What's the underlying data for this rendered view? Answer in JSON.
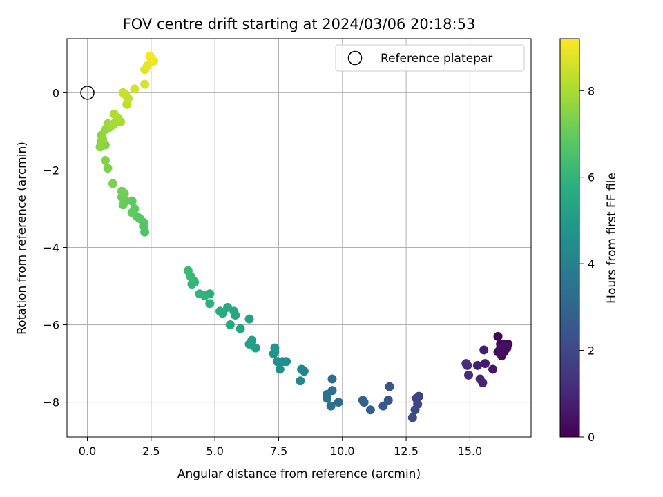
{
  "chart_data": {
    "type": "scatter",
    "title": "FOV centre drift starting at 2024/03/06 20:18:53",
    "xlabel": "Angular distance from reference (arcmin)",
    "ylabel": "Rotation from reference (arcmin)",
    "xlim": [
      -0.8,
      17.4
    ],
    "ylim": [
      -8.9,
      1.4
    ],
    "xticks": [
      0.0,
      2.5,
      5.0,
      7.5,
      10.0,
      12.5,
      15.0
    ],
    "xtick_labels": [
      "0.0",
      "2.5",
      "5.0",
      "7.5",
      "10.0",
      "12.5",
      "15.0"
    ],
    "yticks": [
      0,
      -2,
      -4,
      -6,
      -8
    ],
    "ytick_labels": [
      "0",
      "−2",
      "−4",
      "−6",
      "−8"
    ],
    "grid": true,
    "legend": {
      "position": "upper-right",
      "entries": [
        "Reference platepar"
      ]
    },
    "reference_point": {
      "x": 0.0,
      "y": 0.0
    },
    "colorbar": {
      "label": "Hours from first FF file",
      "colormap": "viridis",
      "range": [
        0,
        9.2
      ],
      "ticks": [
        0,
        2,
        4,
        6,
        8
      ],
      "tick_labels": [
        "0",
        "2",
        "4",
        "6",
        "8"
      ]
    },
    "points": [
      [
        16.1,
        -6.3,
        0.1
      ],
      [
        16.2,
        -6.5,
        0.12
      ],
      [
        16.3,
        -6.6,
        0.15
      ],
      [
        16.4,
        -6.5,
        0.18
      ],
      [
        16.5,
        -6.5,
        0.2
      ],
      [
        16.45,
        -6.6,
        0.22
      ],
      [
        16.35,
        -6.7,
        0.25
      ],
      [
        16.25,
        -6.8,
        0.28
      ],
      [
        16.1,
        -6.7,
        0.3
      ],
      [
        16.2,
        -6.6,
        0.35
      ],
      [
        16.4,
        -6.55,
        0.4
      ],
      [
        15.9,
        -7.15,
        0.55
      ],
      [
        15.6,
        -7.0,
        0.65
      ],
      [
        15.55,
        -6.65,
        0.7
      ],
      [
        15.3,
        -7.05,
        0.8
      ],
      [
        15.4,
        -7.4,
        0.85
      ],
      [
        15.5,
        -7.5,
        0.9
      ],
      [
        14.9,
        -7.05,
        1.1
      ],
      [
        14.95,
        -7.3,
        1.15
      ],
      [
        14.85,
        -7.0,
        1.2
      ],
      [
        13.0,
        -7.85,
        1.8
      ],
      [
        12.9,
        -7.9,
        1.85
      ],
      [
        12.95,
        -8.05,
        1.9
      ],
      [
        12.85,
        -8.2,
        2.0
      ],
      [
        12.75,
        -8.4,
        2.05
      ],
      [
        11.85,
        -7.6,
        2.4
      ],
      [
        11.8,
        -7.95,
        2.45
      ],
      [
        11.6,
        -8.1,
        2.5
      ],
      [
        11.1,
        -8.2,
        2.7
      ],
      [
        10.8,
        -7.95,
        2.8
      ],
      [
        10.85,
        -8.0,
        2.85
      ],
      [
        9.85,
        -8.0,
        3.2
      ],
      [
        9.6,
        -7.4,
        3.3
      ],
      [
        9.6,
        -7.7,
        3.35
      ],
      [
        9.55,
        -8.1,
        3.4
      ],
      [
        9.4,
        -7.8,
        3.45
      ],
      [
        9.4,
        -7.9,
        3.5
      ],
      [
        8.5,
        -7.2,
        4.1
      ],
      [
        8.4,
        -7.15,
        4.15
      ],
      [
        8.35,
        -7.45,
        4.2
      ],
      [
        7.8,
        -6.95,
        4.5
      ],
      [
        7.65,
        -6.95,
        4.55
      ],
      [
        7.55,
        -7.15,
        4.6
      ],
      [
        7.45,
        -6.95,
        4.65
      ],
      [
        7.35,
        -6.7,
        4.7
      ],
      [
        7.3,
        -6.75,
        4.75
      ],
      [
        7.35,
        -6.6,
        4.8
      ],
      [
        6.6,
        -6.6,
        5.1
      ],
      [
        6.45,
        -6.4,
        5.15
      ],
      [
        6.35,
        -6.5,
        5.2
      ],
      [
        6.35,
        -5.85,
        5.25
      ],
      [
        6.0,
        -6.1,
        5.35
      ],
      [
        5.8,
        -5.75,
        5.4
      ],
      [
        5.75,
        -5.65,
        5.45
      ],
      [
        5.6,
        -6.0,
        5.5
      ],
      [
        5.5,
        -5.55,
        5.55
      ],
      [
        5.3,
        -5.7,
        5.6
      ],
      [
        5.2,
        -5.65,
        5.65
      ],
      [
        4.8,
        -5.2,
        5.8
      ],
      [
        4.8,
        -5.45,
        5.85
      ],
      [
        4.6,
        -5.25,
        5.9
      ],
      [
        4.4,
        -5.2,
        5.95
      ],
      [
        4.2,
        -4.9,
        6.0
      ],
      [
        4.1,
        -4.95,
        6.05
      ],
      [
        4.15,
        -4.85,
        6.1
      ],
      [
        4.05,
        -4.75,
        6.15
      ],
      [
        3.95,
        -4.6,
        6.2
      ],
      [
        2.25,
        -3.6,
        6.6
      ],
      [
        2.2,
        -3.45,
        6.65
      ],
      [
        2.2,
        -3.35,
        6.7
      ],
      [
        2.05,
        -3.25,
        6.75
      ],
      [
        1.95,
        -3.2,
        6.8
      ],
      [
        1.85,
        -3.0,
        6.85
      ],
      [
        1.75,
        -2.8,
        6.9
      ],
      [
        1.75,
        -3.1,
        6.95
      ],
      [
        1.5,
        -2.8,
        7.0
      ],
      [
        1.4,
        -2.9,
        7.05
      ],
      [
        1.35,
        -2.7,
        7.1
      ],
      [
        1.45,
        -2.6,
        7.15
      ],
      [
        1.35,
        -2.55,
        7.2
      ],
      [
        1.0,
        -2.35,
        7.3
      ],
      [
        0.8,
        -1.95,
        7.35
      ],
      [
        0.7,
        -1.75,
        7.4
      ],
      [
        0.7,
        -1.35,
        7.45
      ],
      [
        0.55,
        -1.25,
        7.5
      ],
      [
        0.5,
        -1.4,
        7.55
      ],
      [
        0.55,
        -1.1,
        7.6
      ],
      [
        0.6,
        -1.2,
        7.65
      ],
      [
        0.7,
        -0.95,
        7.7
      ],
      [
        0.85,
        -0.9,
        7.75
      ],
      [
        0.95,
        -0.85,
        7.8
      ],
      [
        0.8,
        -0.8,
        7.85
      ],
      [
        1.05,
        -0.8,
        7.9
      ],
      [
        1.15,
        -0.7,
        7.95
      ],
      [
        1.3,
        -0.75,
        8.0
      ],
      [
        1.2,
        -0.65,
        8.05
      ],
      [
        1.05,
        -0.55,
        8.1
      ],
      [
        1.55,
        -0.3,
        8.3
      ],
      [
        1.6,
        -0.15,
        8.35
      ],
      [
        1.5,
        -0.05,
        8.4
      ],
      [
        1.4,
        0.0,
        8.45
      ],
      [
        1.85,
        0.1,
        8.6
      ],
      [
        2.25,
        0.22,
        8.7
      ],
      [
        2.25,
        0.6,
        8.8
      ],
      [
        2.35,
        0.7,
        8.85
      ],
      [
        2.5,
        0.8,
        8.95
      ],
      [
        2.6,
        0.82,
        9.0
      ],
      [
        2.5,
        0.9,
        9.05
      ],
      [
        2.45,
        0.95,
        9.1
      ]
    ]
  }
}
